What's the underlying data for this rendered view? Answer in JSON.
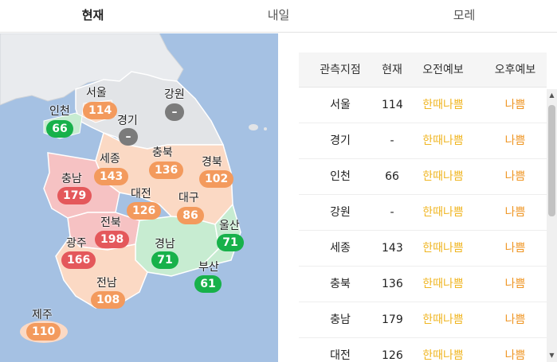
{
  "tabs": [
    {
      "label": "현재",
      "active": true
    },
    {
      "label": "내일",
      "active": false
    },
    {
      "label": "모레",
      "active": false
    }
  ],
  "map": {
    "colors": {
      "sea": "#a5c1e3",
      "good": "#17b14a",
      "normal": "#f39a5d",
      "bad": "#e4585b",
      "none": "#7b7b7b"
    },
    "regions": [
      {
        "name": "서울",
        "value": "114",
        "grade": "normal"
      },
      {
        "name": "강원",
        "value": "–",
        "grade": "none"
      },
      {
        "name": "인천",
        "value": "66",
        "grade": "good"
      },
      {
        "name": "경기",
        "value": "–",
        "grade": "none"
      },
      {
        "name": "세종",
        "value": "143",
        "grade": "normal"
      },
      {
        "name": "충북",
        "value": "136",
        "grade": "normal"
      },
      {
        "name": "경북",
        "value": "102",
        "grade": "normal"
      },
      {
        "name": "충남",
        "value": "179",
        "grade": "bad"
      },
      {
        "name": "대전",
        "value": "126",
        "grade": "normal"
      },
      {
        "name": "대구",
        "value": "86",
        "grade": "normal"
      },
      {
        "name": "전북",
        "value": "198",
        "grade": "bad"
      },
      {
        "name": "울산",
        "value": "71",
        "grade": "good"
      },
      {
        "name": "광주",
        "value": "166",
        "grade": "bad"
      },
      {
        "name": "경남",
        "value": "71",
        "grade": "good"
      },
      {
        "name": "부산",
        "value": "61",
        "grade": "good"
      },
      {
        "name": "전남",
        "value": "108",
        "grade": "normal"
      },
      {
        "name": "제주",
        "value": "110",
        "grade": "normal"
      }
    ]
  },
  "table": {
    "headers": [
      "관측지점",
      "현재",
      "오전예보",
      "오후예보"
    ],
    "rows": [
      {
        "station": "서울",
        "current": "114",
        "am": "한때나쁨",
        "pm": "나쁨"
      },
      {
        "station": "경기",
        "current": "-",
        "am": "한때나쁨",
        "pm": "나쁨"
      },
      {
        "station": "인천",
        "current": "66",
        "am": "한때나쁨",
        "pm": "나쁨"
      },
      {
        "station": "강원",
        "current": "-",
        "am": "한때나쁨",
        "pm": "나쁨"
      },
      {
        "station": "세종",
        "current": "143",
        "am": "한때나쁨",
        "pm": "나쁨"
      },
      {
        "station": "충북",
        "current": "136",
        "am": "한때나쁨",
        "pm": "나쁨"
      },
      {
        "station": "충남",
        "current": "179",
        "am": "한때나쁨",
        "pm": "나쁨"
      },
      {
        "station": "대전",
        "current": "126",
        "am": "한때나쁨",
        "pm": "나쁨"
      }
    ],
    "grade_colors": {
      "veryhigh": "#f0b623",
      "bad": "#ef9624"
    }
  },
  "scrollbar": {
    "up_icon": "chevron-up-icon",
    "down_icon": "chevron-down-icon"
  }
}
